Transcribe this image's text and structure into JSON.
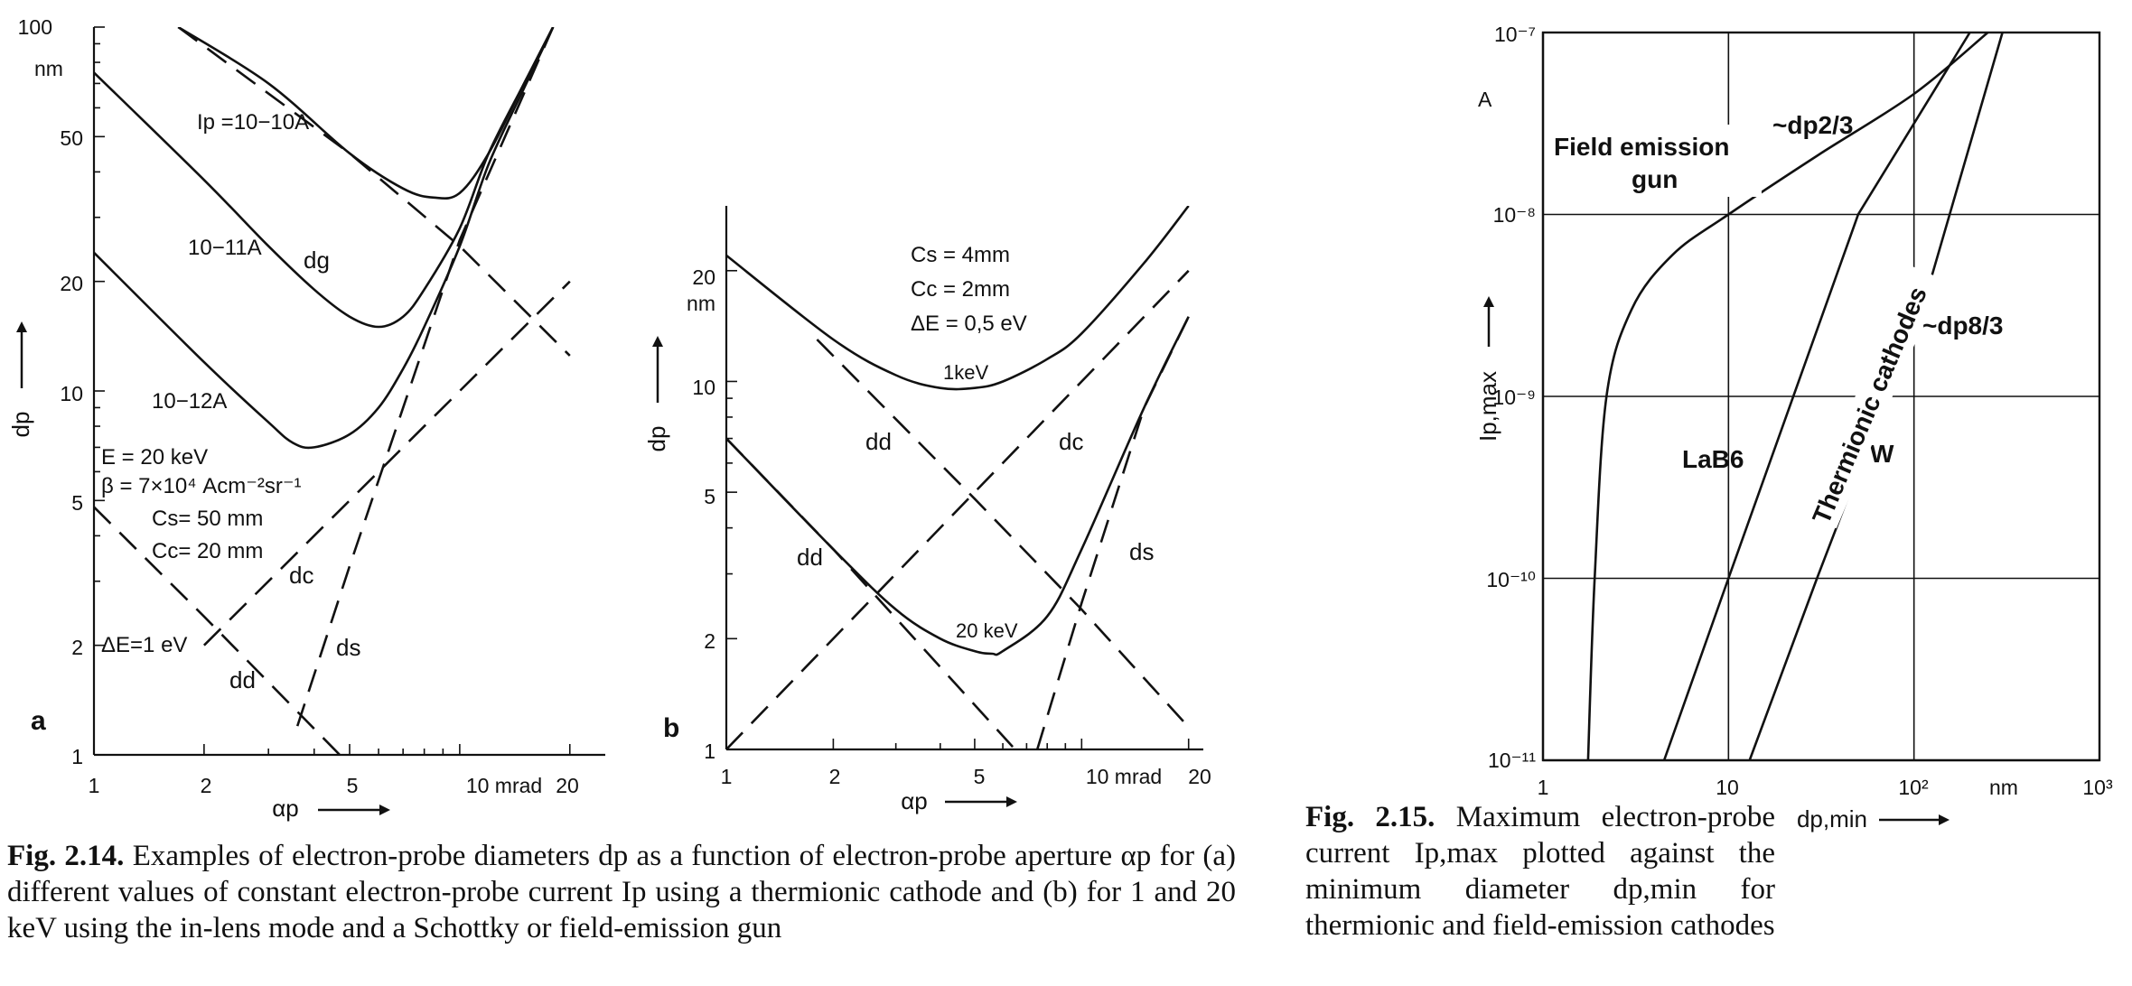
{
  "figure_a": {
    "panel_label": "a",
    "y_unit": "nm",
    "x_ticks": [
      "1",
      "2",
      "5",
      "10 mrad",
      "20"
    ],
    "y_ticks": [
      "100",
      "50",
      "20",
      "10",
      "5",
      "2",
      "1"
    ],
    "x_axis_label": "αp",
    "y_axis_label": "dp",
    "curve_labels": {
      "ip1": "Ip =10−10A",
      "ip2": "10−11A",
      "ip3": "10−12A",
      "dg": "dg",
      "dc": "dc",
      "ds": "ds",
      "dd": "dd"
    },
    "params": [
      "E = 20 keV",
      "β = 7×10⁴ Acm⁻²sr⁻¹",
      "Cs= 50 mm",
      "Cc= 20 mm",
      "ΔE=1 eV"
    ]
  },
  "figure_b": {
    "panel_label": "b",
    "y_unit": "nm",
    "x_ticks": [
      "1",
      "2",
      "5",
      "10 mrad",
      "20"
    ],
    "y_ticks": [
      "20",
      "10",
      "5",
      "2",
      "1"
    ],
    "x_axis_label": "αp",
    "y_axis_label": "dp",
    "params": [
      "Cs = 4mm",
      "Cc = 2mm",
      "ΔE = 0,5 eV"
    ],
    "curve_labels": {
      "kev1": "1keV",
      "kev20": "20 keV",
      "dd1": "dd",
      "dd2": "dd",
      "dc": "dc",
      "ds": "ds"
    }
  },
  "figure_c": {
    "x_ticks": [
      "1",
      "10",
      "10²",
      "nm",
      "10³"
    ],
    "y_ticks": [
      "10⁻⁷",
      "10⁻⁸",
      "10⁻⁹",
      "10⁻¹⁰",
      "10⁻¹¹"
    ],
    "y_unit": "A",
    "x_axis_label": "dp,min",
    "y_axis_label": "Ip,max",
    "curve_labels": {
      "feg": "Field emission",
      "feg2": "gun",
      "p23": "~dp2/3",
      "p83": "~dp8/3",
      "lab6": "LaB6",
      "w": "W",
      "thermionic": "Thermionic cathodes"
    }
  },
  "captions": {
    "fig214_label": "Fig. 2.14.",
    "fig214_text": "Examples of electron-probe diameters dp as a function of electron-probe aperture αp for (a) different values of constant electron-probe current Ip using a thermionic cathode and (b) for 1 and 20 keV using the in-lens mode and a Schottky or field-emission gun",
    "fig215_label": "Fig. 2.15.",
    "fig215_text": "Maximum electron-probe current Ip,max plotted against the minimum diameter dp,min for thermionic and field-emission cathodes"
  },
  "chart_data": [
    {
      "type": "line",
      "title": "",
      "xlabel": "αp (mrad)",
      "ylabel": "dp (nm)",
      "xscale": "log",
      "yscale": "log",
      "xlim": [
        1,
        25
      ],
      "ylim": [
        1,
        100
      ],
      "series": [
        {
          "name": "Ip =10−10A",
          "x": [
            1.7,
            3,
            5,
            7,
            8.5,
            10,
            12,
            15,
            18
          ],
          "y": [
            100,
            70,
            45,
            36,
            34,
            35,
            45,
            70,
            100
          ]
        },
        {
          "name": "10−11A",
          "x": [
            1,
            2,
            3,
            4,
            5,
            6,
            7,
            8,
            10,
            12,
            15,
            18
          ],
          "y": [
            75,
            38,
            25,
            19,
            16,
            15,
            16,
            19,
            28,
            45,
            70,
            100
          ]
        },
        {
          "name": "10−12A",
          "x": [
            1,
            2,
            3,
            3.5,
            4,
            5,
            6,
            7,
            8,
            10,
            12,
            15,
            18
          ],
          "y": [
            24,
            12,
            8.2,
            7.2,
            7,
            7.6,
            9,
            11.5,
            15,
            25,
            42,
            68,
            100
          ]
        },
        {
          "name": "dg",
          "x": [
            1.7,
            5,
            10,
            20
          ],
          "y": [
            100,
            45,
            25,
            12.5
          ]
        },
        {
          "name": "dc",
          "x": [
            2,
            5,
            10,
            20
          ],
          "y": [
            2,
            5,
            10,
            20
          ]
        },
        {
          "name": "ds",
          "x": [
            3.6,
            5,
            10,
            18
          ],
          "y": [
            1.2,
            3.3,
            26,
            100
          ]
        },
        {
          "name": "dd",
          "x": [
            1,
            2,
            4.7
          ],
          "y": [
            4.8,
            2.4,
            1
          ]
        }
      ]
    },
    {
      "type": "line",
      "title": "",
      "xlabel": "αp (mrad)",
      "ylabel": "dp (nm)",
      "xscale": "log",
      "yscale": "log",
      "xlim": [
        1,
        22
      ],
      "ylim": [
        1,
        30
      ],
      "series": [
        {
          "name": "1keV",
          "x": [
            1,
            2,
            3,
            4,
            5,
            6,
            8,
            10,
            15,
            20
          ],
          "y": [
            22,
            13,
            10.4,
            9.6,
            9.6,
            10,
            11.5,
            13.5,
            21,
            30
          ]
        },
        {
          "name": "20 keV",
          "x": [
            1,
            2,
            3,
            4,
            5,
            5.6,
            6,
            8,
            10,
            15,
            20
          ],
          "y": [
            7,
            3.5,
            2.4,
            2,
            1.85,
            1.82,
            1.85,
            2.3,
            3.5,
            8.5,
            15
          ]
        },
        {
          "name": "dd",
          "x": [
            1.8,
            5,
            10,
            20
          ],
          "y": [
            13,
            4.8,
            2.4,
            1.15
          ]
        },
        {
          "name": "dc",
          "x": [
            1,
            5,
            10,
            20
          ],
          "y": [
            1,
            5,
            10,
            20
          ]
        },
        {
          "name": "dd",
          "x": [
            1,
            2,
            6.5
          ],
          "y": [
            7,
            3.5,
            1
          ]
        },
        {
          "name": "ds",
          "x": [
            7.5,
            10,
            15,
            20
          ],
          "y": [
            1,
            2.5,
            8.5,
            15
          ]
        }
      ]
    },
    {
      "type": "line",
      "title": "",
      "xlabel": "dp,min (nm)",
      "ylabel": "Ip,max (A)",
      "xscale": "log",
      "yscale": "log",
      "xlim": [
        1,
        1000
      ],
      "ylim": [
        1e-11,
        1e-07
      ],
      "series": [
        {
          "name": "Field emission gun",
          "x": [
            1.75,
            1.9,
            2.2,
            3,
            5,
            10,
            30,
            100,
            250
          ],
          "y": [
            1e-11,
            1e-10,
            1e-09,
            3e-09,
            6e-09,
            1e-08,
            2.1e-08,
            4.6e-08,
            1e-07
          ]
        },
        {
          "name": "LaB6",
          "x": [
            4.5,
            10,
            50,
            200
          ],
          "y": [
            1e-11,
            1e-10,
            1e-08,
            1e-07
          ]
        },
        {
          "name": "W",
          "x": [
            13,
            30,
            120,
            300
          ],
          "y": [
            1e-11,
            1e-10,
            4e-09,
            1e-07
          ]
        }
      ]
    }
  ]
}
